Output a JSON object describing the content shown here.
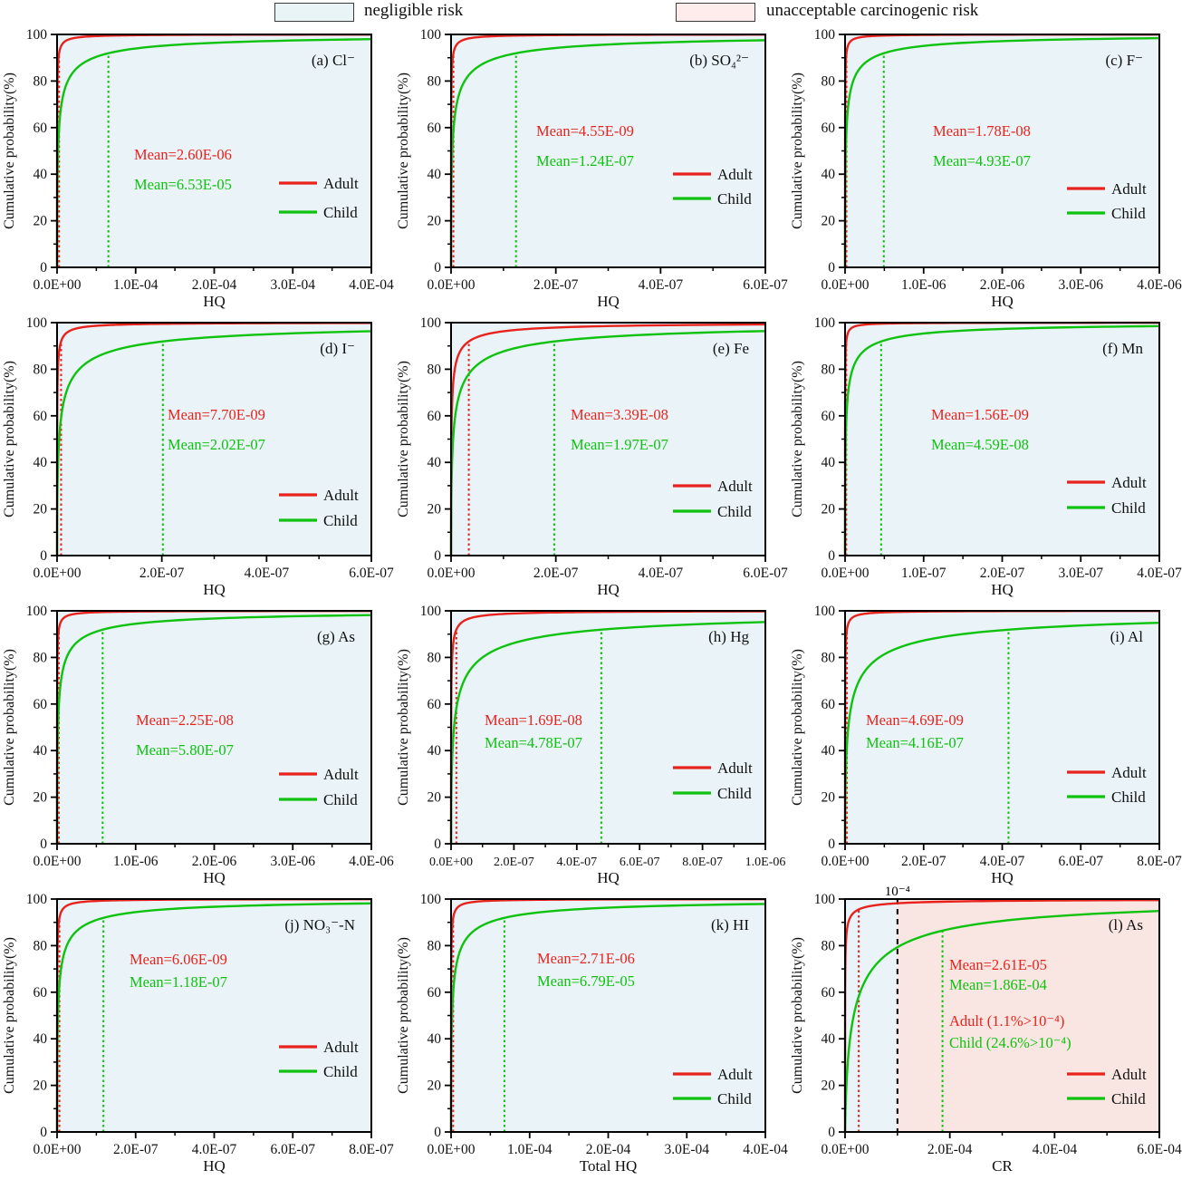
{
  "legend_bar": {
    "negligible_label": "negligible risk",
    "unacceptable_label": "unacceptable carcinogenic risk"
  },
  "colors": {
    "adult": "#e8231d",
    "child": "#0ec20e",
    "negligible_fill": "#e9f3f8",
    "unacceptable_fill": "#f9e6e2",
    "panel_fill": "#e9f3f8",
    "axis": "#000000",
    "threshold": "#000000"
  },
  "axis": {
    "ylabel": "Cumulative probability(%)",
    "yticks": [
      0,
      20,
      40,
      60,
      80,
      100
    ],
    "series_labels": {
      "adult": "Adult",
      "child": "Child"
    }
  },
  "chart_data": [
    {
      "id": "a",
      "type": "line",
      "title": "(a) Cl⁻",
      "xlabel": "HQ",
      "ylabel": "Cumulative probability(%)",
      "ylim": [
        0,
        100
      ],
      "xmax": 0.0004,
      "xticks": [
        "0.0E+00",
        "1.0E-04",
        "2.0E-04",
        "3.0E-04",
        "4.0E-04"
      ],
      "series": [
        {
          "name": "Adult",
          "mean": 2.6e-06,
          "mean_label": "Mean=2.60E-06",
          "spread": 2.8
        },
        {
          "name": "Child",
          "mean": 6.53e-05,
          "mean_label": "Mean=6.53E-05",
          "spread": 2.8
        }
      ]
    },
    {
      "id": "b",
      "type": "line",
      "title": "(b) SO₄²⁻",
      "xlabel": "HQ",
      "ylabel": "Cumulative probability(%)",
      "ylim": [
        0,
        100
      ],
      "xmax": 6e-07,
      "xticks": [
        "0.0E+00",
        "2.0E-07",
        "4.0E-07",
        "6.0E-07"
      ],
      "series": [
        {
          "name": "Adult",
          "mean": 4.55e-09,
          "mean_label": "Mean=4.55E-09",
          "spread": 2.8
        },
        {
          "name": "Child",
          "mean": 1.24e-07,
          "mean_label": "Mean=1.24E-07",
          "spread": 2.8
        }
      ]
    },
    {
      "id": "c",
      "type": "line",
      "title": "(c) F⁻",
      "xlabel": "HQ",
      "ylabel": "Cumulative probability(%)",
      "ylim": [
        0,
        100
      ],
      "xmax": 4e-06,
      "xticks": [
        "0.0E+00",
        "1.0E-06",
        "2.0E-06",
        "3.0E-06",
        "4.0E-06"
      ],
      "series": [
        {
          "name": "Adult",
          "mean": 1.78e-08,
          "mean_label": "Mean=1.78E-08",
          "spread": 2.8
        },
        {
          "name": "Child",
          "mean": 4.93e-07,
          "mean_label": "Mean=4.93E-07",
          "spread": 2.8
        }
      ]
    },
    {
      "id": "d",
      "type": "line",
      "title": "(d) I⁻",
      "xlabel": "HQ",
      "ylabel": "Cumulative probability(%)",
      "ylim": [
        0,
        100
      ],
      "xmax": 6e-07,
      "xticks": [
        "0.0E+00",
        "2.0E-07",
        "4.0E-07",
        "6.0E-07"
      ],
      "series": [
        {
          "name": "Adult",
          "mean": 7.7e-09,
          "mean_label": "Mean=7.70E-09",
          "spread": 2.8
        },
        {
          "name": "Child",
          "mean": 2.02e-07,
          "mean_label": "Mean=2.02E-07",
          "spread": 2.8
        }
      ]
    },
    {
      "id": "e",
      "type": "line",
      "title": "(e) Fe",
      "xlabel": "HQ",
      "ylabel": "Cumulative probability(%)",
      "ylim": [
        0,
        100
      ],
      "xmax": 6e-07,
      "xticks": [
        "0.0E+00",
        "2.0E-07",
        "4.0E-07",
        "6.0E-07"
      ],
      "series": [
        {
          "name": "Adult",
          "mean": 3.39e-08,
          "mean_label": "Mean=3.39E-08",
          "spread": 2.8
        },
        {
          "name": "Child",
          "mean": 1.97e-07,
          "mean_label": "Mean=1.97E-07",
          "spread": 2.8
        }
      ]
    },
    {
      "id": "f",
      "type": "line",
      "title": "(f) Mn",
      "xlabel": "HQ",
      "ylabel": "Cumulative probability(%)",
      "ylim": [
        0,
        100
      ],
      "xmax": 4e-07,
      "xticks": [
        "0.0E+00",
        "1.0E-07",
        "2.0E-07",
        "3.0E-07",
        "4.0E-07"
      ],
      "series": [
        {
          "name": "Adult",
          "mean": 1.56e-09,
          "mean_label": "Mean=1.56E-09",
          "spread": 2.8
        },
        {
          "name": "Child",
          "mean": 4.59e-08,
          "mean_label": "Mean=4.59E-08",
          "spread": 2.8
        }
      ]
    },
    {
      "id": "g",
      "type": "line",
      "title": "(g) As",
      "xlabel": "HQ",
      "ylabel": "Cumulative probability(%)",
      "ylim": [
        0,
        100
      ],
      "xmax": 4e-06,
      "xticks": [
        "0.0E+00",
        "1.0E-06",
        "2.0E-06",
        "3.0E-06",
        "4.0E-06"
      ],
      "series": [
        {
          "name": "Adult",
          "mean": 2.25e-08,
          "mean_label": "Mean=2.25E-08",
          "spread": 2.8
        },
        {
          "name": "Child",
          "mean": 5.8e-07,
          "mean_label": "Mean=5.80E-07",
          "spread": 2.8
        }
      ]
    },
    {
      "id": "h",
      "type": "line",
      "title": "(h) Hg",
      "xlabel": "HQ",
      "ylabel": "Cumulative probability(%)",
      "ylim": [
        0,
        100
      ],
      "xmax": 1e-06,
      "xticks": [
        "0.0E+00",
        "2.0E-07",
        "4.0E-07",
        "6.0E-07",
        "8.0E-07",
        "1.0E-06"
      ],
      "series": [
        {
          "name": "Adult",
          "mean": 1.69e-08,
          "mean_label": "Mean=1.69E-08",
          "spread": 2.8
        },
        {
          "name": "Child",
          "mean": 4.78e-07,
          "mean_label": "Mean=4.78E-07",
          "spread": 2.8
        }
      ]
    },
    {
      "id": "i",
      "type": "line",
      "title": "(i) Al",
      "xlabel": "HQ",
      "ylabel": "Cumulative probability(%)",
      "ylim": [
        0,
        100
      ],
      "xmax": 8e-07,
      "xticks": [
        "0.0E+00",
        "2.0E-07",
        "4.0E-07",
        "6.0E-07",
        "8.0E-07"
      ],
      "series": [
        {
          "name": "Adult",
          "mean": 4.69e-09,
          "mean_label": "Mean=4.69E-09",
          "spread": 2.8
        },
        {
          "name": "Child",
          "mean": 4.16e-07,
          "mean_label": "Mean=4.16E-07",
          "spread": 2.8
        }
      ]
    },
    {
      "id": "j",
      "type": "line",
      "title": "(j) NO₃⁻-N",
      "xlabel": "HQ",
      "ylabel": "Cumulative probability(%)",
      "ylim": [
        0,
        100
      ],
      "xmax": 8e-07,
      "xticks": [
        "0.0E+00",
        "2.0E-07",
        "4.0E-07",
        "6.0E-07",
        "8.0E-07"
      ],
      "series": [
        {
          "name": "Adult",
          "mean": 6.06e-09,
          "mean_label": "Mean=6.06E-09",
          "spread": 2.8
        },
        {
          "name": "Child",
          "mean": 1.18e-07,
          "mean_label": "Mean=1.18E-07",
          "spread": 2.8
        }
      ]
    },
    {
      "id": "k",
      "type": "line",
      "title": "(k) HI",
      "xlabel": "Total HQ",
      "ylabel": "Cumulative probability(%)",
      "ylim": [
        0,
        100
      ],
      "xmax": 0.0004,
      "xticks": [
        "0.0E+00",
        "1.0E-04",
        "2.0E-04",
        "3.0E-04",
        "4.0E-04"
      ],
      "series": [
        {
          "name": "Adult",
          "mean": 2.71e-06,
          "mean_label": "Mean=2.71E-06",
          "spread": 2.8
        },
        {
          "name": "Child",
          "mean": 6.79e-05,
          "mean_label": "Mean=6.79E-05",
          "spread": 2.8
        }
      ]
    },
    {
      "id": "l",
      "type": "line",
      "title": "(l) As",
      "xlabel": "CR",
      "ylabel": "Cumulative probability(%)",
      "ylim": [
        0,
        100
      ],
      "xmax": 0.0006,
      "xticks": [
        "0.0E+00",
        "2.0E-04",
        "4.0E-04",
        "6.0E-04"
      ],
      "threshold": 0.0001,
      "threshold_label": "10⁻⁴",
      "regions": [
        {
          "from": 0,
          "to": 0.0001,
          "fill": "negligible"
        },
        {
          "from": 0.0001,
          "to": 0.0006,
          "fill": "unacceptable"
        }
      ],
      "series": [
        {
          "name": "Adult",
          "mean": 2.61e-05,
          "mean_label": "Mean=2.61E-05",
          "spread": 3.4,
          "exceed_label": "Adult (1.1%>10⁻⁴)"
        },
        {
          "name": "Child",
          "mean": 0.000186,
          "mean_label": "Mean=1.86E-04",
          "spread": 2.2,
          "exceed_label": "Child (24.6%>10⁻⁴)"
        }
      ]
    }
  ]
}
